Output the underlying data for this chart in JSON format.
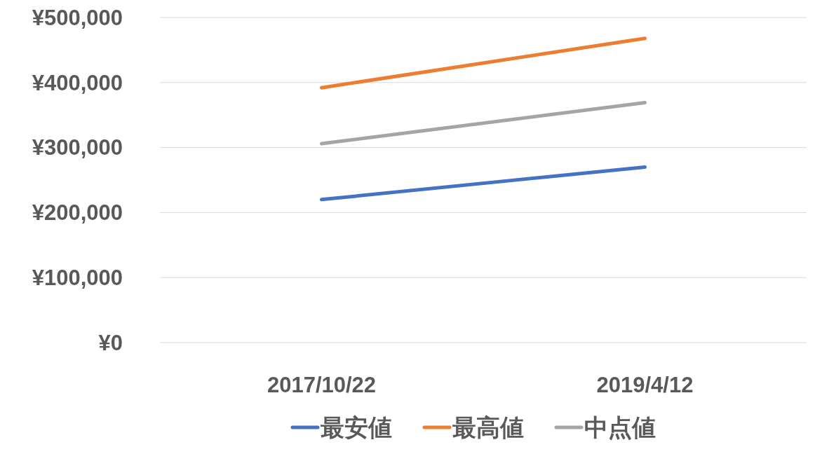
{
  "chart_data": {
    "type": "line",
    "categories": [
      "2017/10/22",
      "2019/4/12"
    ],
    "series": [
      {
        "name": "最安値",
        "color": "#4472c4",
        "values": [
          220000,
          270000
        ]
      },
      {
        "name": "最高値",
        "color": "#ed7d31",
        "values": [
          392000,
          468000
        ]
      },
      {
        "name": "中点値",
        "color": "#a5a5a5",
        "values": [
          306000,
          369000
        ]
      }
    ],
    "ylim": [
      0,
      500000
    ],
    "yticks": [
      {
        "value": 0,
        "label": "¥0"
      },
      {
        "value": 100000,
        "label": "¥100,000"
      },
      {
        "value": 200000,
        "label": "¥200,000"
      },
      {
        "value": 300000,
        "label": "¥300,000"
      },
      {
        "value": 400000,
        "label": "¥400,000"
      },
      {
        "value": 500000,
        "label": "¥500,000"
      }
    ],
    "grid": "y",
    "legend": "bottom",
    "marker": "none",
    "line_style": "solid"
  }
}
